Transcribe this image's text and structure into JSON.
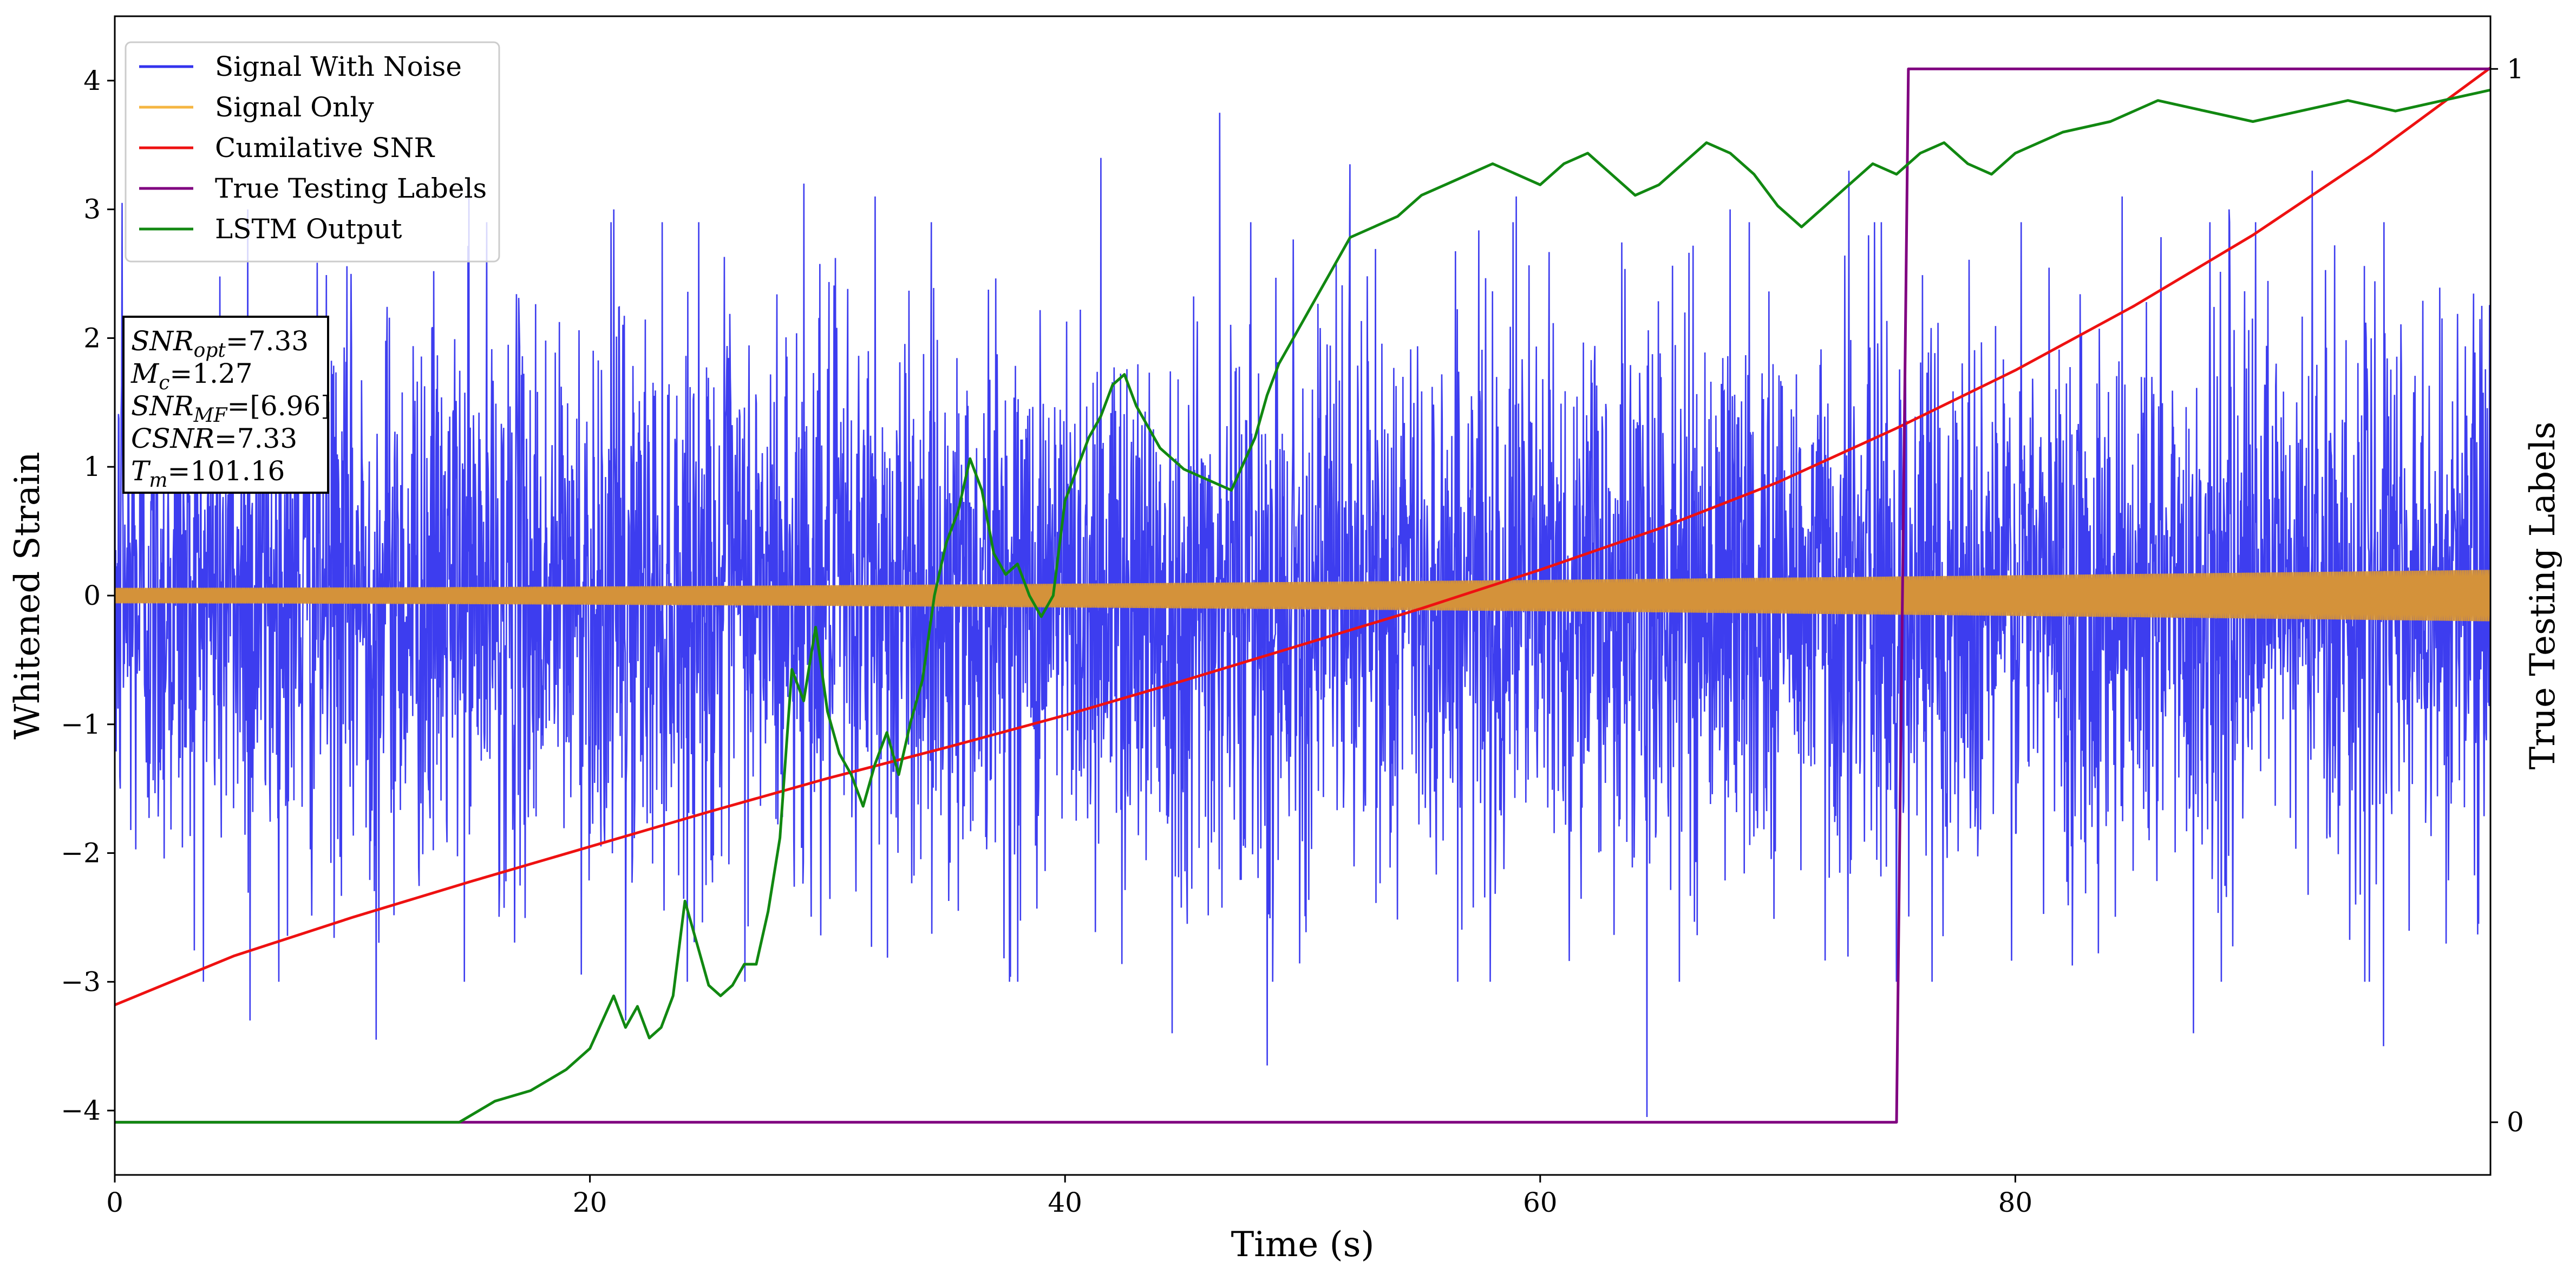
{
  "chart_data": {
    "type": "line",
    "xlabel": "Time (s)",
    "ylabel": "Whitened Strain",
    "y2label": "True Testing Labels",
    "xlim": [
      0,
      100
    ],
    "ylim": [
      -4.5,
      4.5
    ],
    "y2lim": [
      -0.05,
      1.05
    ],
    "x_ticks": [
      0,
      20,
      40,
      60,
      80
    ],
    "y_ticks": [
      -4,
      -3,
      -2,
      -1,
      0,
      1,
      2,
      3,
      4
    ],
    "y2_ticks": [
      0,
      1
    ],
    "grid": false,
    "legend_position": "top-left",
    "legend": [
      {
        "name": "Signal With Noise",
        "color": "#3333ee"
      },
      {
        "name": "Signal Only",
        "color": "#f5b642"
      },
      {
        "name": "Cumilative SNR",
        "color": "#ee1111"
      },
      {
        "name": "True Testing Labels",
        "color": "#800080"
      },
      {
        "name": "LSTM Output",
        "color": "#118811"
      }
    ],
    "info_box": [
      {
        "symbol": "SNR",
        "sub": "opt",
        "value": "=7.33"
      },
      {
        "symbol": "M",
        "sub": "c",
        "value": "=1.27"
      },
      {
        "symbol": "SNR",
        "sub": "MF",
        "value": "=[6.96]"
      },
      {
        "symbol": "CSNR",
        "sub": "",
        "value": "=7.33"
      },
      {
        "symbol": "T",
        "sub": "m",
        "value": "=101.16"
      }
    ],
    "series": [
      {
        "name": "Signal With Noise",
        "axis": "left",
        "color": "#3333ee",
        "noise_band": {
          "typical_abs": 1.5,
          "peak_max": 3.75,
          "peak_min": -4.05
        },
        "peaks": [
          [
            0.3,
            3.05
          ],
          [
            5.6,
            3.0
          ],
          [
            14.9,
            3.1
          ],
          [
            21.0,
            3.0
          ],
          [
            29.0,
            3.2
          ],
          [
            32.0,
            3.1
          ],
          [
            41.5,
            3.4
          ],
          [
            46.5,
            3.75
          ],
          [
            52.0,
            3.35
          ],
          [
            59.0,
            3.1
          ],
          [
            68.0,
            3.0
          ],
          [
            73.0,
            3.3
          ],
          [
            84.5,
            3.1
          ],
          [
            89.0,
            3.0
          ],
          [
            92.5,
            3.3
          ],
          [
            5.7,
            -3.3
          ],
          [
            11.0,
            -3.45
          ],
          [
            21.5,
            -3.3
          ],
          [
            38.0,
            -3.0
          ],
          [
            44.5,
            -3.4
          ],
          [
            48.5,
            -3.65
          ],
          [
            64.5,
            -4.05
          ],
          [
            75.0,
            -3.0
          ],
          [
            87.5,
            -3.4
          ],
          [
            95.5,
            -3.5
          ],
          [
            99.5,
            -2.55
          ]
        ]
      },
      {
        "name": "Signal Only",
        "axis": "left",
        "color": "#d4923a",
        "amplitude_start": 0.06,
        "amplitude_end": 0.2
      },
      {
        "name": "Cumilative SNR",
        "axis": "left",
        "color": "#ee1111",
        "x": [
          0,
          5,
          10,
          15,
          20,
          25,
          30,
          35,
          40,
          45,
          50,
          55,
          60,
          65,
          70,
          75,
          80,
          85,
          90,
          95,
          100
        ],
        "y": [
          -3.18,
          -2.8,
          -2.5,
          -2.22,
          -1.95,
          -1.68,
          -1.42,
          -1.18,
          -0.93,
          -0.66,
          -0.38,
          -0.1,
          0.2,
          0.52,
          0.88,
          1.3,
          1.75,
          2.25,
          2.8,
          3.42,
          4.1
        ]
      },
      {
        "name": "True Testing Labels",
        "axis": "right",
        "color": "#800080",
        "x": [
          0,
          75.0,
          75.5,
          100
        ],
        "y": [
          0,
          0,
          1,
          1
        ]
      },
      {
        "name": "LSTM Output",
        "axis": "right",
        "color": "#118811",
        "x": [
          0,
          14.5,
          16,
          17.5,
          19,
          20,
          21,
          21.5,
          22,
          22.5,
          23,
          23.5,
          24,
          24.5,
          25,
          25.5,
          26,
          26.5,
          27,
          27.5,
          28,
          28.5,
          29,
          29.5,
          30,
          30.5,
          31,
          31.5,
          32,
          32.5,
          33,
          33.5,
          34,
          34.5,
          35,
          35.5,
          36,
          36.5,
          37,
          37.5,
          38,
          38.5,
          39,
          39.5,
          40,
          40.5,
          41,
          41.5,
          42,
          42.5,
          43,
          43.5,
          44,
          45,
          46,
          47,
          48,
          48.5,
          49,
          49.5,
          50,
          50.5,
          51,
          51.5,
          52,
          53,
          54,
          55,
          56,
          57,
          58,
          59,
          60,
          61,
          62,
          63,
          64,
          65,
          66,
          67,
          68,
          69,
          70,
          71,
          72,
          73,
          74,
          75,
          76,
          77,
          78,
          79,
          80,
          82,
          84,
          86,
          88,
          90,
          92,
          94,
          96,
          98,
          100
        ],
        "y": [
          0,
          0,
          0.02,
          0.03,
          0.05,
          0.07,
          0.12,
          0.09,
          0.11,
          0.08,
          0.09,
          0.12,
          0.21,
          0.17,
          0.13,
          0.12,
          0.13,
          0.15,
          0.15,
          0.2,
          0.27,
          0.43,
          0.4,
          0.47,
          0.39,
          0.35,
          0.33,
          0.3,
          0.34,
          0.37,
          0.33,
          0.38,
          0.42,
          0.5,
          0.55,
          0.58,
          0.63,
          0.6,
          0.54,
          0.52,
          0.53,
          0.5,
          0.48,
          0.5,
          0.59,
          0.62,
          0.65,
          0.67,
          0.7,
          0.71,
          0.68,
          0.66,
          0.64,
          0.62,
          0.61,
          0.6,
          0.65,
          0.69,
          0.72,
          0.74,
          0.76,
          0.78,
          0.8,
          0.82,
          0.84,
          0.85,
          0.86,
          0.88,
          0.89,
          0.9,
          0.91,
          0.9,
          0.89,
          0.91,
          0.92,
          0.9,
          0.88,
          0.89,
          0.91,
          0.93,
          0.92,
          0.9,
          0.87,
          0.85,
          0.87,
          0.89,
          0.91,
          0.9,
          0.92,
          0.93,
          0.91,
          0.9,
          0.92,
          0.94,
          0.95,
          0.97,
          0.96,
          0.95,
          0.96,
          0.97,
          0.96,
          0.97,
          0.98
        ]
      }
    ]
  }
}
